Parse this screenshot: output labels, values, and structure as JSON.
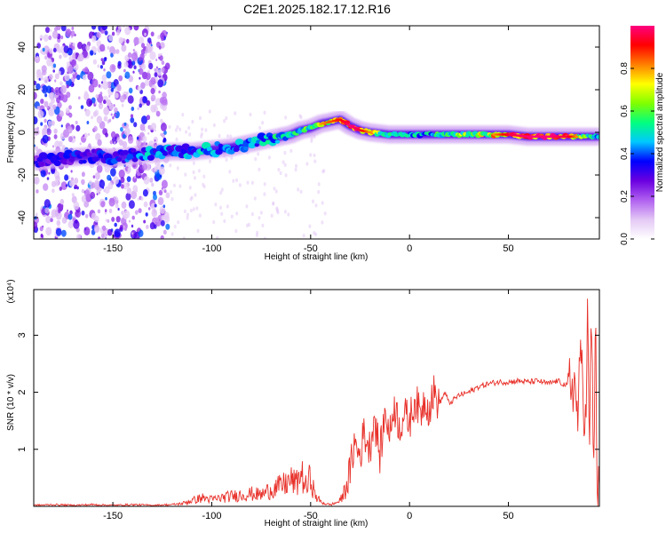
{
  "title": "C2E1.2025.182.17.12.R16",
  "chart_data": [
    {
      "type": "heatmap",
      "xlabel": "Height of straight line (km)",
      "ylabel": "Frequency (Hz)",
      "xlim": [
        -190,
        96
      ],
      "ylim": [
        -50,
        50
      ],
      "x_ticks": [
        -150,
        -100,
        -50,
        0,
        50
      ],
      "y_ticks": [
        -40,
        -20,
        0,
        20,
        40
      ],
      "colorbar": {
        "label": "Normalized spectral amplitude",
        "range": [
          0,
          1
        ],
        "ticks": [
          "0.0",
          "0.2",
          "0.4",
          "0.6",
          "0.8"
        ],
        "colors": [
          "#ffffff",
          "#e3c8f5",
          "#b060f0",
          "#6a00e0",
          "#0000ff",
          "#00c8ff",
          "#00ff80",
          "#80ff00",
          "#ffff00",
          "#ff8000",
          "#ff0000",
          "#ff0080"
        ]
      },
      "ridge": {
        "x": [
          -190,
          -175,
          -160,
          -150,
          -140,
          -130,
          -120,
          -110,
          -100,
          -90,
          -80,
          -70,
          -60,
          -55,
          -50,
          -45,
          -40,
          -35,
          -30,
          -25,
          -20,
          -10,
          0,
          10,
          20,
          30,
          40,
          50,
          60,
          70,
          80,
          90,
          95
        ],
        "y": [
          -14,
          -12,
          -11,
          -12,
          -11,
          -10,
          -9,
          -9,
          -8,
          -7,
          -5,
          -3,
          -1,
          1,
          2,
          4,
          5,
          6,
          3,
          1,
          0,
          -1,
          -1,
          -1,
          -1,
          -1,
          -1,
          -1,
          -2,
          -2,
          -2,
          -2,
          -2
        ],
        "amp": [
          0.3,
          0.35,
          0.35,
          0.35,
          0.4,
          0.45,
          0.4,
          0.45,
          0.45,
          0.45,
          0.45,
          0.5,
          0.5,
          0.55,
          0.6,
          0.75,
          0.8,
          0.85,
          0.95,
          0.9,
          0.75,
          0.5,
          0.5,
          0.5,
          0.6,
          0.65,
          0.7,
          0.9,
          0.95,
          0.95,
          0.9,
          0.6,
          0.5
        ]
      }
    },
    {
      "type": "line",
      "xlabel": "Height of straight line (km)",
      "ylabel": "SNR (10 * v/v)",
      "y_multiplier": "(x10⁴)",
      "xlim": [
        -190,
        96
      ],
      "ylim": [
        0,
        3.8
      ],
      "x_ticks": [
        -150,
        -100,
        -50,
        0,
        50
      ],
      "y_ticks": [
        1,
        2,
        3
      ],
      "series": [
        {
          "color": "#e8312a",
          "x": [
            -190,
            -180,
            -170,
            -160,
            -150,
            -140,
            -130,
            -120,
            -115,
            -110,
            -105,
            -100,
            -95,
            -90,
            -85,
            -80,
            -75,
            -70,
            -65,
            -60,
            -57,
            -55,
            -52,
            -50,
            -48,
            -45,
            -42,
            -40,
            -38,
            -35,
            -33,
            -30,
            -28,
            -25,
            -23,
            -20,
            -18,
            -15,
            -12,
            -10,
            -8,
            -5,
            -3,
            0,
            3,
            5,
            8,
            10,
            12,
            15,
            18,
            20,
            25,
            30,
            35,
            40,
            45,
            50,
            55,
            60,
            65,
            70,
            75,
            80,
            83,
            85,
            87,
            89,
            90,
            91,
            92,
            93,
            94,
            95
          ],
          "y": [
            0.02,
            0.03,
            0.02,
            0.03,
            0.02,
            0.03,
            0.02,
            0.03,
            0.05,
            0.1,
            0.15,
            0.12,
            0.15,
            0.18,
            0.2,
            0.22,
            0.2,
            0.3,
            0.35,
            0.45,
            0.4,
            0.6,
            0.3,
            0.55,
            0.2,
            0.08,
            0.04,
            0.03,
            0.05,
            0.1,
            0.25,
            0.6,
            1.1,
            0.9,
            1.3,
            1.0,
            1.6,
            0.9,
            1.7,
            1.2,
            1.8,
            1.4,
            1.6,
            1.5,
            1.9,
            1.6,
            1.9,
            1.7,
            2.0,
            1.8,
            2.0,
            1.8,
            1.95,
            2.0,
            2.1,
            2.15,
            2.18,
            2.18,
            2.2,
            2.18,
            2.2,
            2.15,
            2.2,
            2.1,
            2.2,
            1.6,
            2.7,
            1.3,
            3.3,
            0.9,
            3.6,
            0.4,
            3.2,
            0.2
          ]
        }
      ]
    }
  ]
}
